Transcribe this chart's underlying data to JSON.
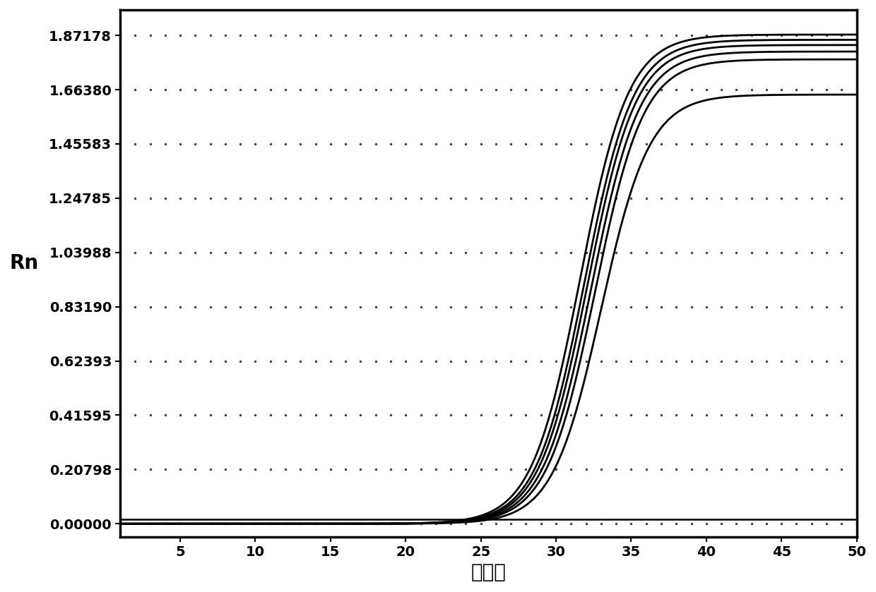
{
  "xlabel": "循环数",
  "ylabel": "Rn",
  "x_min": 1,
  "x_max": 50,
  "x_ticks": [
    5,
    10,
    15,
    20,
    25,
    30,
    35,
    40,
    45,
    50
  ],
  "y_ticks": [
    0.0,
    0.20798,
    0.41595,
    0.62393,
    0.8319,
    1.03988,
    1.24785,
    1.45583,
    1.6638,
    1.87178
  ],
  "y_min": -0.05,
  "y_max": 1.97,
  "background_color": "#ffffff",
  "line_color": "#000000",
  "n_curves": 6,
  "plateau_values": [
    1.875,
    1.855,
    1.835,
    1.81,
    1.78,
    1.645
  ],
  "midpoints": [
    31.6,
    31.9,
    32.1,
    32.35,
    32.6,
    33.0
  ],
  "steepness": [
    0.62,
    0.62,
    0.62,
    0.62,
    0.62,
    0.62
  ],
  "flat_line_y": 0.018,
  "dot_color": "#444444",
  "dot_size": 3.0
}
